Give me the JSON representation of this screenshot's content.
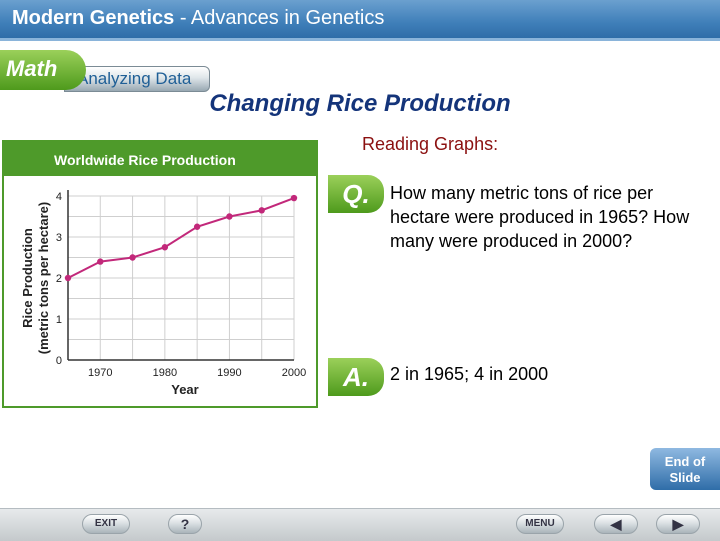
{
  "header": {
    "title_bold": "Modern Genetics",
    "title_rest": " - Advances in Genetics"
  },
  "tabs": {
    "math": "Math",
    "analyzing": "Analyzing Data"
  },
  "main_title": "Changing Rice Production",
  "reading_label": "Reading Graphs:",
  "question": {
    "badge": "Q.",
    "text": "How many metric tons of rice per hectare were produced in 1965? How many were produced in 2000?"
  },
  "answer": {
    "badge": "A.",
    "text": "2 in 1965; 4 in 2000"
  },
  "end_slide": {
    "line1": "End of",
    "line2": "Slide"
  },
  "nav": {
    "exit": "EXIT",
    "help": "?",
    "menu": "MENU",
    "prev": "◀",
    "next": "▶"
  },
  "colors": {
    "header": "#3f7fb9",
    "chart_line": "#c2287a",
    "chart_panel_border": "#4e9a2a",
    "title": "#14347a"
  },
  "chart_data": {
    "type": "line",
    "title": "Worldwide Rice Production",
    "xlabel": "Year",
    "ylabel_line1": "Rice Production",
    "ylabel_line2": "(metric tons per hectare)",
    "x": [
      1965,
      1970,
      1975,
      1980,
      1985,
      1990,
      1995,
      2000
    ],
    "values": [
      2.0,
      2.4,
      2.5,
      2.75,
      3.25,
      3.5,
      3.65,
      3.95
    ],
    "xlim": [
      1965,
      2000
    ],
    "ylim": [
      0,
      4
    ],
    "xticks": [
      1970,
      1980,
      1990,
      2000
    ],
    "yticks": [
      0,
      1,
      2,
      3,
      4
    ],
    "grid": true
  }
}
